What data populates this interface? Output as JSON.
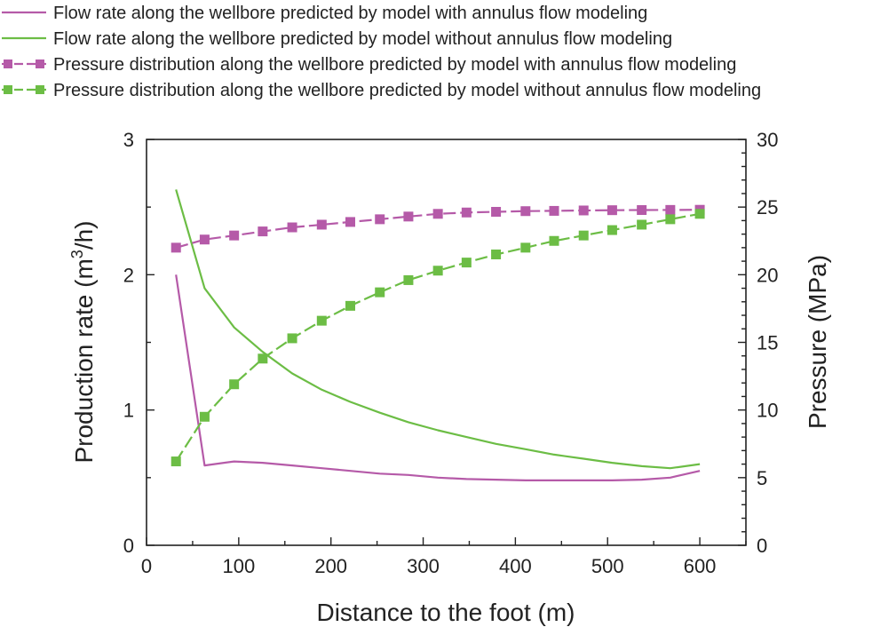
{
  "chart_data": {
    "type": "line",
    "title": "",
    "xlabel": "Distance to the foot (m)",
    "ylabel_left": "Production rate (m3/h)",
    "ylabel_left_parts": [
      "Production rate (m",
      "3",
      "/h)"
    ],
    "ylabel_right": "Pressure (MPa)",
    "xlim": [
      0,
      650
    ],
    "ylim_left": [
      0,
      3
    ],
    "ylim_right": [
      0,
      30
    ],
    "x_ticks": [
      0,
      100,
      200,
      300,
      400,
      500,
      600
    ],
    "y_left_ticks": [
      0,
      1,
      2,
      3
    ],
    "y_right_ticks": [
      0,
      5,
      10,
      15,
      20,
      25,
      30
    ],
    "grid": false,
    "legend_position": "top",
    "series": [
      {
        "name": "Flow rate along the wellbore predicted by model with annulus flow modeling",
        "axis": "left",
        "color": "#b55aa8",
        "marker": "none",
        "dashed": false,
        "x": [
          32,
          63,
          95,
          126,
          158,
          190,
          221,
          253,
          284,
          316,
          347,
          379,
          411,
          442,
          474,
          505,
          537,
          568,
          600
        ],
        "values": [
          2.0,
          0.59,
          0.62,
          0.61,
          0.59,
          0.57,
          0.55,
          0.53,
          0.52,
          0.5,
          0.49,
          0.485,
          0.48,
          0.48,
          0.48,
          0.48,
          0.485,
          0.5,
          0.55
        ]
      },
      {
        "name": "Flow rate along the wellbore predicted by model without annulus flow modeling",
        "axis": "left",
        "color": "#6cbd45",
        "marker": "none",
        "dashed": false,
        "x": [
          32,
          63,
          95,
          126,
          158,
          190,
          221,
          253,
          284,
          316,
          347,
          379,
          411,
          442,
          474,
          505,
          537,
          568,
          600
        ],
        "values": [
          2.63,
          1.9,
          1.61,
          1.43,
          1.27,
          1.15,
          1.06,
          0.98,
          0.91,
          0.85,
          0.8,
          0.75,
          0.71,
          0.67,
          0.64,
          0.61,
          0.585,
          0.57,
          0.6
        ]
      },
      {
        "name": "Pressure distribution along the wellbore predicted by model with annulus flow modeling",
        "axis": "right",
        "color": "#b55aa8",
        "marker": "square",
        "dashed": true,
        "x": [
          32,
          63,
          95,
          126,
          158,
          190,
          221,
          253,
          284,
          316,
          347,
          379,
          411,
          442,
          474,
          505,
          537,
          568,
          600
        ],
        "values": [
          22.0,
          22.6,
          22.9,
          23.2,
          23.5,
          23.7,
          23.9,
          24.1,
          24.3,
          24.5,
          24.6,
          24.65,
          24.7,
          24.72,
          24.75,
          24.77,
          24.78,
          24.79,
          24.8
        ]
      },
      {
        "name": "Pressure distribution along the wellbore predicted by model without annulus flow modeling",
        "axis": "right",
        "color": "#6cbd45",
        "marker": "square",
        "dashed": true,
        "x": [
          32,
          63,
          95,
          126,
          158,
          190,
          221,
          253,
          284,
          316,
          347,
          379,
          411,
          442,
          474,
          505,
          537,
          568,
          600
        ],
        "values": [
          6.2,
          9.5,
          11.9,
          13.8,
          15.3,
          16.6,
          17.7,
          18.7,
          19.6,
          20.3,
          20.9,
          21.5,
          22.0,
          22.5,
          22.9,
          23.3,
          23.7,
          24.1,
          24.5
        ]
      }
    ]
  }
}
